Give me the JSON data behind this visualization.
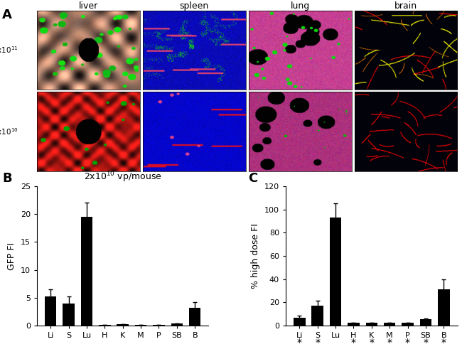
{
  "panel_A_labels_top": [
    "liver",
    "spleen",
    "lung",
    "brain"
  ],
  "panel_B_title": "2x10$^{10}$ vp/mouse",
  "panel_B_categories": [
    "Li",
    "S",
    "Lu",
    "H",
    "K",
    "M",
    "P",
    "SB",
    "B"
  ],
  "panel_B_values": [
    5.3,
    4.0,
    19.5,
    0.15,
    0.3,
    0.15,
    0.15,
    0.4,
    3.2
  ],
  "panel_B_errors": [
    1.2,
    1.3,
    2.5,
    0.0,
    0.0,
    0.0,
    0.0,
    0.0,
    1.0
  ],
  "panel_B_ylabel": "GFP FI",
  "panel_B_ylim": [
    0,
    25
  ],
  "panel_B_yticks": [
    0,
    5,
    10,
    15,
    20,
    25
  ],
  "panel_C_categories": [
    "Li",
    "S",
    "Lu",
    "H",
    "K",
    "M",
    "P",
    "SB",
    "B"
  ],
  "panel_C_values": [
    7.0,
    17.0,
    93.0,
    2.5,
    2.5,
    2.5,
    2.5,
    5.5,
    31.0
  ],
  "panel_C_errors": [
    1.5,
    4.5,
    12.0,
    0.0,
    0.0,
    0.0,
    0.0,
    0.8,
    9.0
  ],
  "panel_C_ylabel": "% high dose FI",
  "panel_C_ylim": [
    0,
    120
  ],
  "panel_C_yticks": [
    0,
    20,
    40,
    60,
    80,
    100,
    120
  ],
  "panel_C_asterisk": [
    true,
    true,
    false,
    true,
    true,
    true,
    true,
    true,
    true
  ],
  "bar_color": "#000000",
  "background_color": "#ffffff",
  "label_A": "A",
  "label_B": "B",
  "label_C": "C"
}
